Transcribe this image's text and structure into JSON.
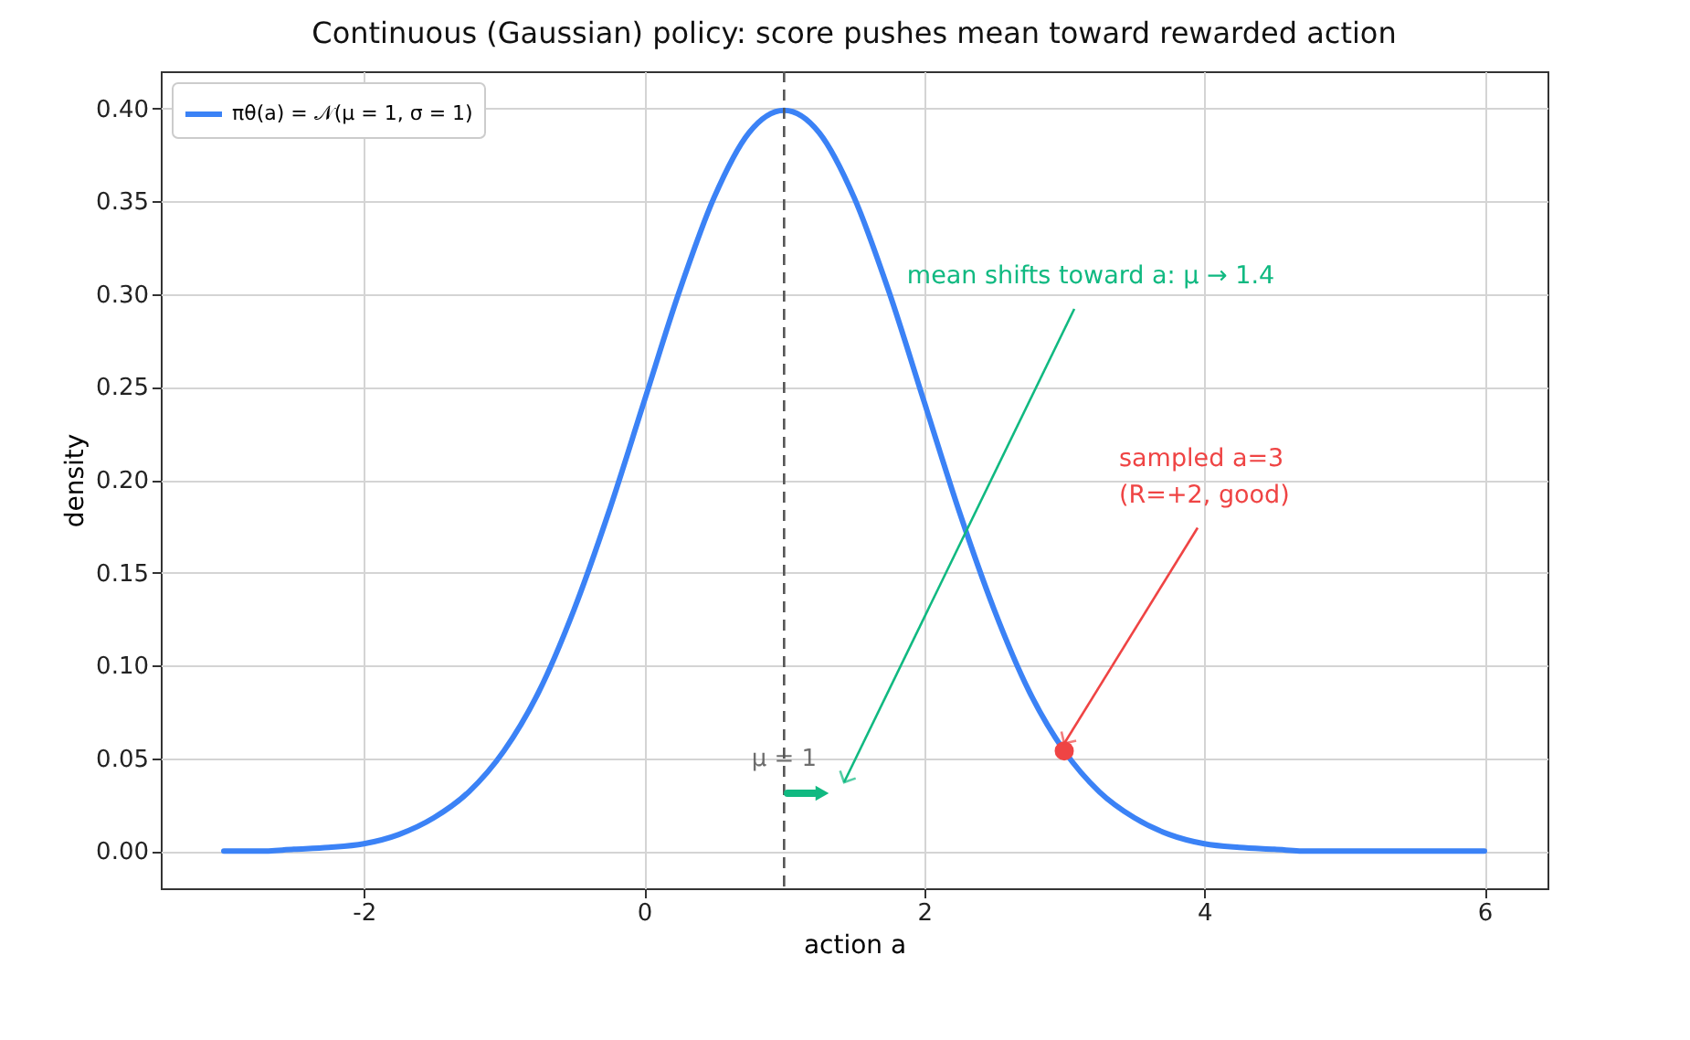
{
  "chart_data": {
    "type": "line",
    "title": "Continuous (Gaussian) policy: score pushes mean toward rewarded action",
    "xlabel": "action a",
    "ylabel": "density",
    "x": [
      -3,
      -2.75,
      -2.5,
      -2.25,
      -2,
      -1.75,
      -1.5,
      -1.25,
      -1,
      -0.75,
      -0.5,
      -0.25,
      0,
      0.25,
      0.5,
      0.75,
      1,
      1.25,
      1.5,
      1.75,
      2,
      2.25,
      2.5,
      2.75,
      3,
      3.25,
      3.5,
      3.75,
      4,
      4.25,
      4.5,
      4.75,
      5,
      5.25,
      5.5,
      5.75,
      6
    ],
    "series": [
      {
        "name": "πθ(a) = 𝒩(μ = 1, σ = 1)",
        "color": "#3b82f6",
        "values": [
          0,
          0,
          0.001,
          0.002,
          0.004,
          0.009,
          0.018,
          0.032,
          0.054,
          0.086,
          0.13,
          0.183,
          0.242,
          0.301,
          0.352,
          0.387,
          0.399,
          0.387,
          0.352,
          0.301,
          0.242,
          0.183,
          0.13,
          0.086,
          0.054,
          0.032,
          0.018,
          0.009,
          0.004,
          0.002,
          0.001,
          0,
          0,
          0,
          0,
          0,
          0
        ]
      },
      {
        "type": "scatter",
        "color": "#ef4444",
        "x": [
          3
        ],
        "values": [
          0.054
        ]
      }
    ],
    "ref_lines": [
      {
        "axis": "x",
        "value": 1,
        "label": "μ = 1",
        "color": "#555555",
        "line_style": "dashed"
      }
    ],
    "annotations": [
      "mean shifts toward a: μ → 1.4",
      {
        "text": "sampled a=3\n(R=+2, good)",
        "x": 3,
        "y": 0.058
      }
    ],
    "xlim": [
      -3.45,
      6.45
    ],
    "xticks": [
      -2,
      0,
      2,
      4,
      6
    ],
    "ylim": [
      -0.02,
      0.42
    ],
    "yticks": [
      {
        "value": 0,
        "label": "0.00"
      },
      {
        "value": 0.05,
        "label": "0.05"
      },
      {
        "value": 0.1,
        "label": "0.10"
      },
      {
        "value": 0.15,
        "label": "0.15"
      },
      {
        "value": 0.2,
        "label": "0.20"
      },
      {
        "value": 0.25,
        "label": "0.25"
      },
      {
        "value": 0.3,
        "label": "0.30"
      },
      {
        "value": 0.35,
        "label": "0.35"
      },
      {
        "value": 0.4,
        "label": "0.40"
      }
    ],
    "grid": true,
    "legend": "top left",
    "line_style": "solid"
  }
}
